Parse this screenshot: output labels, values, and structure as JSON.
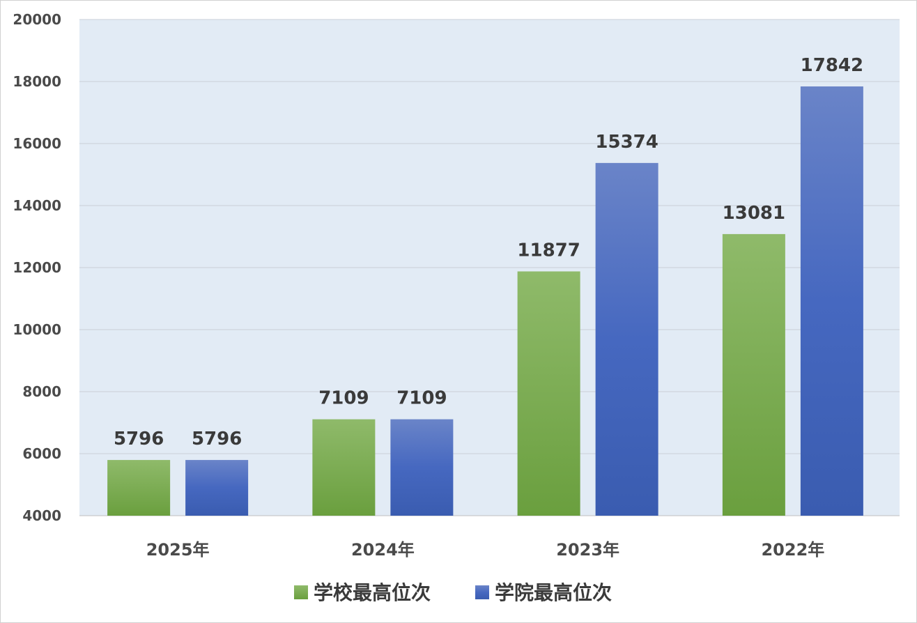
{
  "chart_data": {
    "type": "bar",
    "categories": [
      "2025年",
      "2024年",
      "2023年",
      "2022年"
    ],
    "series": [
      {
        "name": "学校最高位次",
        "values": [
          5796,
          7109,
          11877,
          13081
        ],
        "color": "#7aaa4c"
      },
      {
        "name": "学院最高位次",
        "values": [
          5796,
          7109,
          15374,
          17842
        ],
        "color": "#4668c0"
      }
    ],
    "yticks": [
      4000,
      6000,
      8000,
      10000,
      12000,
      14000,
      16000,
      18000,
      20000
    ],
    "ylim": [
      4000,
      20000
    ],
    "grid": true,
    "legend": "bottom",
    "plot_background": "#e2ebf5"
  }
}
